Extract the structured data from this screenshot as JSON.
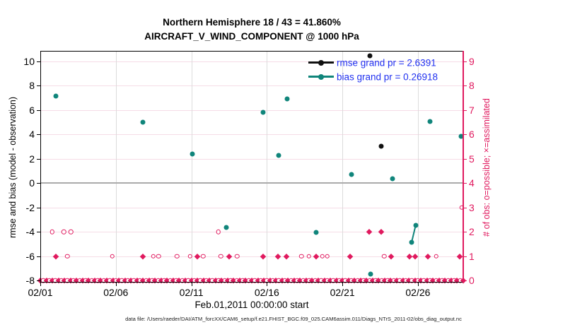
{
  "title": {
    "line1": "Northern Hemisphere 18 / 43 = 41.860%",
    "line2": "AIRCRAFT_V_WIND_COMPONENT @ 1000 hPa"
  },
  "colors": {
    "crimson": "#e0195e",
    "teal": "#10857b",
    "legend_text_blue": "#2030f0",
    "grid_pink": "#f6dce6",
    "grid_gray": "#dcdcdc",
    "zero_gray": "#ababab",
    "rmse_black": "#111111"
  },
  "legend": {
    "rmse_label": "rmse grand pr = 2.6391",
    "bias_label": "bias grand pr = 0.26918"
  },
  "caption": "data file: /Users/raeder/DAI/ATM_forcXX/CAM6_setup/f.e21.FHIST_BGC.f09_025.CAM6assim.011/Diags_NTrS_2011-02/obs_diag_output.nc",
  "chart_data": {
    "type": "scatter",
    "title": "Northern Hemisphere 18 / 43 = 41.860% | AIRCRAFT_V_WIND_COMPONENT @ 1000 hPa",
    "xlabel": "Feb.01,2011 00:00:00 start",
    "x_axis": {
      "tick_labels": [
        "02/01",
        "02/06",
        "02/11",
        "02/16",
        "02/21",
        "02/26"
      ],
      "tick_days": [
        1,
        6,
        11,
        16,
        21,
        26
      ],
      "range_days": [
        1,
        29
      ],
      "grid": "vertical gray lines at labeled ticks"
    },
    "left_axis": {
      "label": "rmse and bias (model - observation)",
      "ticks": [
        10,
        8,
        6,
        4,
        2,
        0,
        -2,
        -4,
        -6,
        -8
      ],
      "range": [
        -8.2,
        10.9
      ],
      "zero_line": true
    },
    "right_axis": {
      "label": "# of obs: o=possible; ×=assimilated",
      "ticks": [
        9,
        8,
        7,
        6,
        5,
        4,
        3,
        2,
        1,
        0
      ],
      "range": [
        0,
        9.45
      ],
      "grid": "horizontal pink lines at every right tick"
    },
    "legend_position": "top-right inside plot, no box, blue text",
    "series": [
      {
        "name": "rmse",
        "axis": "left",
        "marker": "filled-dot",
        "color": "#111111",
        "grand_value": 2.6391,
        "points_day_value": [
          [
            22.8,
            10.45
          ],
          [
            23.56,
            3.05
          ]
        ]
      },
      {
        "name": "bias",
        "axis": "left",
        "marker": "filled-dot",
        "color": "#10857b",
        "grand_value": 0.26918,
        "points_day_value": [
          [
            2.02,
            7.15
          ],
          [
            7.8,
            5.0
          ],
          [
            11.06,
            2.4
          ],
          [
            13.3,
            -3.65
          ],
          [
            15.77,
            5.8
          ],
          [
            16.76,
            2.3
          ],
          [
            17.34,
            6.9
          ],
          [
            19.25,
            -4.05
          ],
          [
            21.6,
            0.7
          ],
          [
            22.85,
            -7.5
          ],
          [
            24.33,
            0.35
          ],
          [
            25.6,
            -4.85
          ],
          [
            25.87,
            -3.45
          ],
          [
            26.78,
            5.05
          ],
          [
            28.84,
            3.85
          ]
        ],
        "line_segments": [
          [
            [
              25.6,
              -4.85
            ],
            [
              25.87,
              -3.45
            ]
          ]
        ]
      },
      {
        "name": "obs-possible",
        "axis": "right",
        "marker": "open-circle",
        "color": "#e0195e",
        "rows": [
          {
            "value": 3,
            "days": [
              28.9
            ]
          },
          {
            "value": 2,
            "days": [
              1.78,
              2.56,
              3.03,
              12.78
            ]
          },
          {
            "value": 1,
            "days": [
              2.79,
              5.76,
              8.49,
              8.82,
              10.05,
              10.91,
              11.77,
              12.94,
              14.03,
              18.28,
              18.78,
              19.68,
              19.99,
              23.77,
              27.2
            ]
          }
        ]
      },
      {
        "name": "obs-assimilated",
        "axis": "right",
        "marker": "filled-diamond",
        "color": "#e0195e",
        "rows": [
          {
            "value": 2,
            "days": [
              22.76,
              23.57
            ]
          },
          {
            "value": 1,
            "days": [
              2.02,
              7.79,
              11.38,
              13.49,
              15.73,
              16.74,
              17.29,
              19.24,
              21.5,
              24.23,
              25.45,
              25.8,
              26.65,
              28.76
            ]
          }
        ]
      }
    ],
    "bottom_band": {
      "description": "dense overlapping possible+assimilated markers at right-axis value 0 along entire x range",
      "axis": "right",
      "value": 0,
      "day_start": 1.0,
      "day_end": 29.0,
      "step": 0.2
    }
  }
}
